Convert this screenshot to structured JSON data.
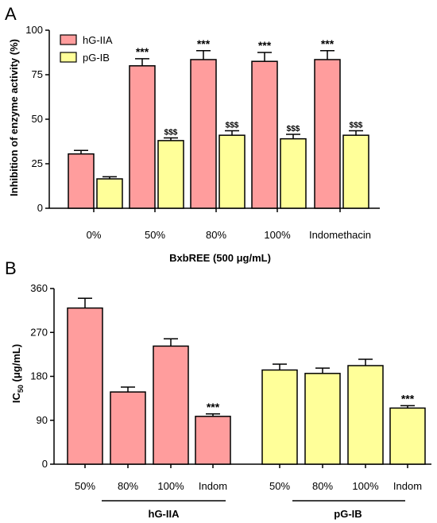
{
  "colors": {
    "hG": "#ff9d9d",
    "pG": "#ffff99",
    "stroke": "#000000"
  },
  "chart_data": [
    {
      "panel": "A",
      "type": "bar",
      "categories": [
        "0%",
        "50%",
        "80%",
        "100%",
        "Indomethacin"
      ],
      "xlabel": "BxbREE (500 μg/mL)",
      "ylabel": "Inhibition of enzyme activity (%)",
      "ylim": [
        0,
        100
      ],
      "yticks": [
        0,
        25,
        50,
        75,
        100
      ],
      "legend": "top-left",
      "series": [
        {
          "name": "hG-IIA",
          "color": "#ff9d9d",
          "values": [
            30.5,
            80,
            83.5,
            82.5,
            83.5
          ],
          "errors": [
            2,
            4,
            5,
            5,
            5
          ],
          "annotations": [
            "",
            "***",
            "***",
            "***",
            "***"
          ]
        },
        {
          "name": "pG-IB",
          "color": "#ffff99",
          "values": [
            16.5,
            38,
            41,
            39,
            41
          ],
          "errors": [
            1.2,
            1.5,
            2.5,
            2.5,
            2.5
          ],
          "annotations": [
            "",
            "$$$",
            "$$$",
            "$$$",
            "$$$"
          ]
        }
      ]
    },
    {
      "panel": "B",
      "type": "bar",
      "ylabel_main": "IC",
      "ylabel_sub": "50",
      "ylabel_unit": " (μg/mL)",
      "ylim": [
        0,
        360
      ],
      "yticks": [
        0,
        90,
        180,
        270,
        360
      ],
      "groups": [
        {
          "name": "hG-IIA",
          "color": "#ff9d9d",
          "categories": [
            "50%",
            "80%",
            "100%",
            "Indom"
          ],
          "values": [
            320,
            148,
            242,
            98
          ],
          "errors": [
            20,
            10,
            15,
            5
          ],
          "annotations": [
            "",
            "",
            "",
            "***"
          ]
        },
        {
          "name": "pG-IB",
          "color": "#ffff99",
          "categories": [
            "50%",
            "80%",
            "100%",
            "Indom"
          ],
          "values": [
            193,
            186,
            202,
            115
          ],
          "errors": [
            12,
            11,
            13,
            5
          ],
          "annotations": [
            "",
            "",
            "",
            "***"
          ]
        }
      ]
    }
  ]
}
